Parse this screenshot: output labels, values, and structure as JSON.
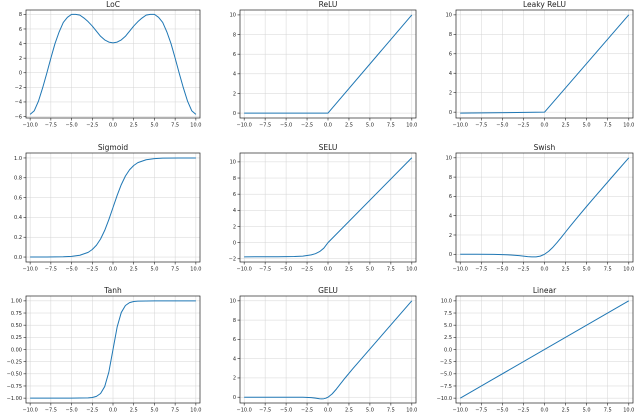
{
  "styles": {
    "line_color": "#1f77b4",
    "grid": true
  },
  "chart_data": [
    {
      "type": "line",
      "title": "LoC",
      "xlim": [
        -10.5,
        10.5
      ],
      "ylim": [
        -6.2,
        8.6
      ],
      "xticks": [
        -10,
        -7.5,
        -5,
        -2.5,
        0,
        2.5,
        5,
        7.5,
        10
      ],
      "xtick_labels": [
        "−10.0",
        "−7.5",
        "−5.0",
        "−2.5",
        "0.0",
        "2.5",
        "5.0",
        "7.5",
        "10.0"
      ],
      "yticks": [
        -6,
        -4,
        -2,
        0,
        2,
        4,
        6,
        8
      ],
      "ytick_labels": [
        "−6",
        "−4",
        "−2",
        "0",
        "2",
        "4",
        "6",
        "8"
      ],
      "x": [
        -10,
        -9.5,
        -9,
        -8.5,
        -8,
        -7.5,
        -7,
        -6.5,
        -6,
        -5.5,
        -5,
        -4.5,
        -4,
        -3.5,
        -3,
        -2.5,
        -2,
        -1.5,
        -1,
        -0.5,
        0,
        0.5,
        1,
        1.5,
        2,
        2.5,
        3,
        3.5,
        4,
        4.5,
        5,
        5.5,
        6,
        6.5,
        7,
        7.5,
        8,
        8.5,
        9,
        9.5,
        10
      ],
      "y": [
        -5.7,
        -5.2,
        -3.9,
        -2.1,
        -0.1,
        2.0,
        4.0,
        5.6,
        6.9,
        7.6,
        8.0,
        8.0,
        7.9,
        7.5,
        7.0,
        6.4,
        5.7,
        5.0,
        4.5,
        4.2,
        4.1,
        4.2,
        4.5,
        5.0,
        5.7,
        6.4,
        7.0,
        7.5,
        7.9,
        8.0,
        8.0,
        7.6,
        6.9,
        5.6,
        4.0,
        2.0,
        -0.1,
        -2.1,
        -3.9,
        -5.2,
        -5.7
      ]
    },
    {
      "type": "line",
      "title": "ReLU",
      "xlim": [
        -10.5,
        10.5
      ],
      "ylim": [
        -0.5,
        10.5
      ],
      "xticks": [
        -10,
        -7.5,
        -5,
        -2.5,
        0,
        2.5,
        5,
        7.5,
        10
      ],
      "xtick_labels": [
        "−10.0",
        "−7.5",
        "−5.0",
        "−2.5",
        "0.0",
        "2.5",
        "5.0",
        "7.5",
        "10.0"
      ],
      "yticks": [
        0,
        2,
        4,
        6,
        8,
        10
      ],
      "ytick_labels": [
        "0",
        "2",
        "4",
        "6",
        "8",
        "10"
      ],
      "x": [
        -10,
        0,
        10
      ],
      "y": [
        0,
        0,
        10
      ]
    },
    {
      "type": "line",
      "title": "Leaky ReLU",
      "xlim": [
        -10.5,
        10.5
      ],
      "ylim": [
        -0.6,
        10.5
      ],
      "xticks": [
        -10,
        -7.5,
        -5,
        -2.5,
        0,
        2.5,
        5,
        7.5,
        10
      ],
      "xtick_labels": [
        "−10.0",
        "−7.5",
        "−5.0",
        "−2.5",
        "0.0",
        "2.5",
        "5.0",
        "7.5",
        "10.0"
      ],
      "yticks": [
        0,
        2,
        4,
        6,
        8,
        10
      ],
      "ytick_labels": [
        "0",
        "2",
        "4",
        "6",
        "8",
        "10"
      ],
      "x": [
        -10,
        0,
        10
      ],
      "y": [
        -0.1,
        0,
        10
      ]
    },
    {
      "type": "line",
      "title": "Sigmoid",
      "xlim": [
        -10.5,
        10.5
      ],
      "ylim": [
        -0.05,
        1.05
      ],
      "xticks": [
        -10,
        -7.5,
        -5,
        -2.5,
        0,
        2.5,
        5,
        7.5,
        10
      ],
      "xtick_labels": [
        "−10.0",
        "−7.5",
        "−5.0",
        "−2.5",
        "0.0",
        "2.5",
        "5.0",
        "7.5",
        "10.0"
      ],
      "yticks": [
        0,
        0.2,
        0.4,
        0.6,
        0.8,
        1.0
      ],
      "ytick_labels": [
        "0.0",
        "0.2",
        "0.4",
        "0.6",
        "0.8",
        "1.0"
      ],
      "x": [
        -10,
        -8,
        -6,
        -5,
        -4,
        -3,
        -2.5,
        -2,
        -1.5,
        -1,
        -0.5,
        0,
        0.5,
        1,
        1.5,
        2,
        2.5,
        3,
        4,
        5,
        6,
        8,
        10
      ],
      "y": [
        0.0,
        0.0003,
        0.0025,
        0.0067,
        0.018,
        0.047,
        0.076,
        0.119,
        0.182,
        0.269,
        0.378,
        0.5,
        0.622,
        0.731,
        0.818,
        0.881,
        0.924,
        0.953,
        0.982,
        0.993,
        0.998,
        0.9997,
        1.0
      ]
    },
    {
      "type": "line",
      "title": "SELU",
      "xlim": [
        -10.5,
        10.5
      ],
      "ylim": [
        -2.4,
        11.1
      ],
      "xticks": [
        -10,
        -7.5,
        -5,
        -2.5,
        0,
        2.5,
        5,
        7.5,
        10
      ],
      "xtick_labels": [
        "−10.0",
        "−7.5",
        "−5.0",
        "−2.5",
        "0.0",
        "2.5",
        "5.0",
        "7.5",
        "10.0"
      ],
      "yticks": [
        -2,
        0,
        2,
        4,
        6,
        8,
        10
      ],
      "ytick_labels": [
        "−2",
        "0",
        "2",
        "4",
        "6",
        "8",
        "10"
      ],
      "x": [
        -10,
        -6,
        -4,
        -3,
        -2,
        -1.5,
        -1,
        -0.5,
        0,
        10
      ],
      "y": [
        -1.76,
        -1.75,
        -1.72,
        -1.67,
        -1.52,
        -1.37,
        -1.11,
        -0.69,
        0,
        10.51
      ]
    },
    {
      "type": "line",
      "title": "Swish",
      "xlim": [
        -10.5,
        10.5
      ],
      "ylim": [
        -0.8,
        10.5
      ],
      "xticks": [
        -10,
        -7.5,
        -5,
        -2.5,
        0,
        2.5,
        5,
        7.5,
        10
      ],
      "xtick_labels": [
        "−10.0",
        "−7.5",
        "−5.0",
        "−2.5",
        "0.0",
        "2.5",
        "5.0",
        "7.5",
        "10.0"
      ],
      "yticks": [
        0,
        2,
        4,
        6,
        8,
        10
      ],
      "ytick_labels": [
        "0",
        "2",
        "4",
        "6",
        "8",
        "10"
      ],
      "x": [
        -10,
        -8,
        -6,
        -5,
        -4,
        -3,
        -2.5,
        -2,
        -1.5,
        -1,
        -0.5,
        0,
        0.5,
        1,
        1.5,
        2,
        2.5,
        3,
        4,
        5,
        6,
        8,
        10
      ],
      "y": [
        0.0,
        -0.003,
        -0.015,
        -0.033,
        -0.072,
        -0.142,
        -0.19,
        -0.238,
        -0.273,
        -0.269,
        -0.189,
        0,
        0.311,
        0.731,
        1.227,
        1.762,
        2.31,
        2.858,
        3.928,
        4.967,
        5.985,
        7.997,
        10.0
      ]
    },
    {
      "type": "line",
      "title": "Tanh",
      "xlim": [
        -10.5,
        10.5
      ],
      "ylim": [
        -1.1,
        1.1
      ],
      "xticks": [
        -10,
        -7.5,
        -5,
        -2.5,
        0,
        2.5,
        5,
        7.5,
        10
      ],
      "xtick_labels": [
        "−10.0",
        "−7.5",
        "−5.0",
        "−2.5",
        "0.0",
        "2.5",
        "5.0",
        "7.5",
        "10.0"
      ],
      "yticks": [
        -1.0,
        -0.75,
        -0.5,
        -0.25,
        0,
        0.25,
        0.5,
        0.75,
        1.0
      ],
      "ytick_labels": [
        "−1.00",
        "−0.75",
        "−0.50",
        "−0.25",
        "0.00",
        "0.25",
        "0.50",
        "0.75",
        "1.00"
      ],
      "x": [
        -10,
        -5,
        -3,
        -2.5,
        -2,
        -1.5,
        -1,
        -0.5,
        0,
        0.5,
        1,
        1.5,
        2,
        2.5,
        3,
        5,
        10
      ],
      "y": [
        -1.0,
        -0.9999,
        -0.995,
        -0.987,
        -0.964,
        -0.905,
        -0.762,
        -0.462,
        0,
        0.462,
        0.762,
        0.905,
        0.964,
        0.987,
        0.995,
        0.9999,
        1.0
      ]
    },
    {
      "type": "line",
      "title": "GELU",
      "xlim": [
        -10.5,
        10.5
      ],
      "ylim": [
        -0.6,
        10.5
      ],
      "xticks": [
        -10,
        -7.5,
        -5,
        -2.5,
        0,
        2.5,
        5,
        7.5,
        10
      ],
      "xtick_labels": [
        "−10.0",
        "−7.5",
        "−5.0",
        "−2.5",
        "0.0",
        "2.5",
        "5.0",
        "7.5",
        "10.0"
      ],
      "yticks": [
        0,
        2,
        4,
        6,
        8,
        10
      ],
      "ytick_labels": [
        "0",
        "2",
        "4",
        "6",
        "8",
        "10"
      ],
      "x": [
        -10,
        -4,
        -3,
        -2,
        -1.5,
        -1,
        -0.75,
        -0.5,
        -0.25,
        0,
        0.5,
        1,
        1.5,
        2,
        3,
        4,
        10
      ],
      "y": [
        0,
        -0.0001,
        -0.004,
        -0.045,
        -0.1,
        -0.159,
        -0.17,
        -0.154,
        -0.1,
        0,
        0.346,
        0.841,
        1.4,
        1.955,
        2.996,
        4.0,
        10.0
      ]
    },
    {
      "type": "line",
      "title": "Linear",
      "xlim": [
        -10.5,
        10.5
      ],
      "ylim": [
        -11,
        11
      ],
      "xticks": [
        -10,
        -7.5,
        -5,
        -2.5,
        0,
        2.5,
        5,
        7.5,
        10
      ],
      "xtick_labels": [
        "−10.0",
        "−7.5",
        "−5.0",
        "−2.5",
        "0.0",
        "2.5",
        "5.0",
        "7.5",
        "10.0"
      ],
      "yticks": [
        -10,
        -7.5,
        -5,
        -2.5,
        0,
        2.5,
        5,
        7.5,
        10
      ],
      "ytick_labels": [
        "−10.0",
        "−7.5",
        "−5.0",
        "−2.5",
        "0.0",
        "2.5",
        "5.0",
        "7.5",
        "10.0"
      ],
      "x": [
        -10,
        10
      ],
      "y": [
        -10,
        10
      ]
    }
  ]
}
